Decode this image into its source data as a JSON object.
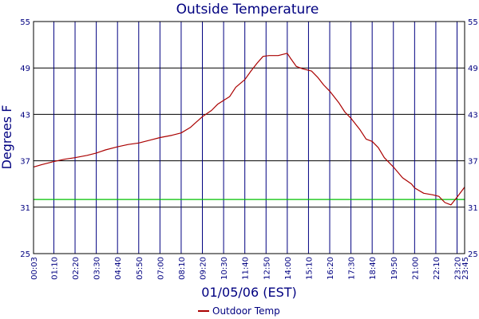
{
  "chart_data": {
    "type": "line",
    "title": "Outside Temperature",
    "xlabel": "01/05/06 (EST)",
    "ylabel": "Degrees F",
    "ylim": [
      25,
      55
    ],
    "yticks": [
      "25",
      "31",
      "37",
      "43",
      "49",
      "55"
    ],
    "xlim": [
      "00:03",
      "23:45"
    ],
    "xticks": [
      "00:03",
      "01:10",
      "02:20",
      "03:30",
      "04:40",
      "05:50",
      "07:00",
      "08:10",
      "09:20",
      "10:30",
      "11:40",
      "12:50",
      "14:00",
      "15:10",
      "16:20",
      "17:30",
      "18:40",
      "19:50",
      "21:00",
      "22:10",
      "23:20",
      "23:45"
    ],
    "grid": true,
    "legend_position": "bottom-center",
    "reference_line": {
      "y": 32,
      "color": "#00c000"
    },
    "colors": {
      "series": "#aa0000",
      "axis": "#000080",
      "grid": "#000000"
    },
    "series": [
      {
        "name": "Outdoor Temp",
        "color": "#aa0000",
        "x": [
          "00:03",
          "00:30",
          "01:10",
          "01:45",
          "02:20",
          "03:00",
          "03:30",
          "04:00",
          "04:40",
          "05:15",
          "05:50",
          "06:30",
          "07:00",
          "07:40",
          "08:10",
          "08:40",
          "09:00",
          "09:20",
          "09:50",
          "10:10",
          "10:30",
          "10:50",
          "11:10",
          "11:40",
          "12:00",
          "12:20",
          "12:40",
          "13:00",
          "13:30",
          "14:00",
          "14:10",
          "14:30",
          "14:50",
          "15:20",
          "15:40",
          "16:00",
          "16:20",
          "16:50",
          "17:10",
          "17:30",
          "18:00",
          "18:20",
          "18:40",
          "19:00",
          "19:20",
          "19:50",
          "20:20",
          "20:50",
          "21:00",
          "21:30",
          "22:00",
          "22:20",
          "22:40",
          "23:00",
          "23:20",
          "23:45"
        ],
        "values": [
          36.2,
          36.5,
          36.9,
          37.2,
          37.4,
          37.7,
          38.0,
          38.4,
          38.8,
          39.1,
          39.3,
          39.7,
          40.0,
          40.3,
          40.6,
          41.3,
          42.0,
          42.7,
          43.5,
          44.3,
          44.8,
          45.3,
          46.5,
          47.5,
          48.6,
          49.6,
          50.5,
          50.6,
          50.6,
          50.9,
          50.3,
          49.2,
          48.9,
          48.6,
          47.8,
          46.8,
          46.0,
          44.5,
          43.3,
          42.5,
          41.0,
          39.8,
          39.5,
          38.7,
          37.4,
          36.2,
          34.8,
          34.0,
          33.5,
          32.8,
          32.6,
          32.4,
          31.6,
          31.3,
          32.3,
          33.6
        ]
      }
    ]
  }
}
